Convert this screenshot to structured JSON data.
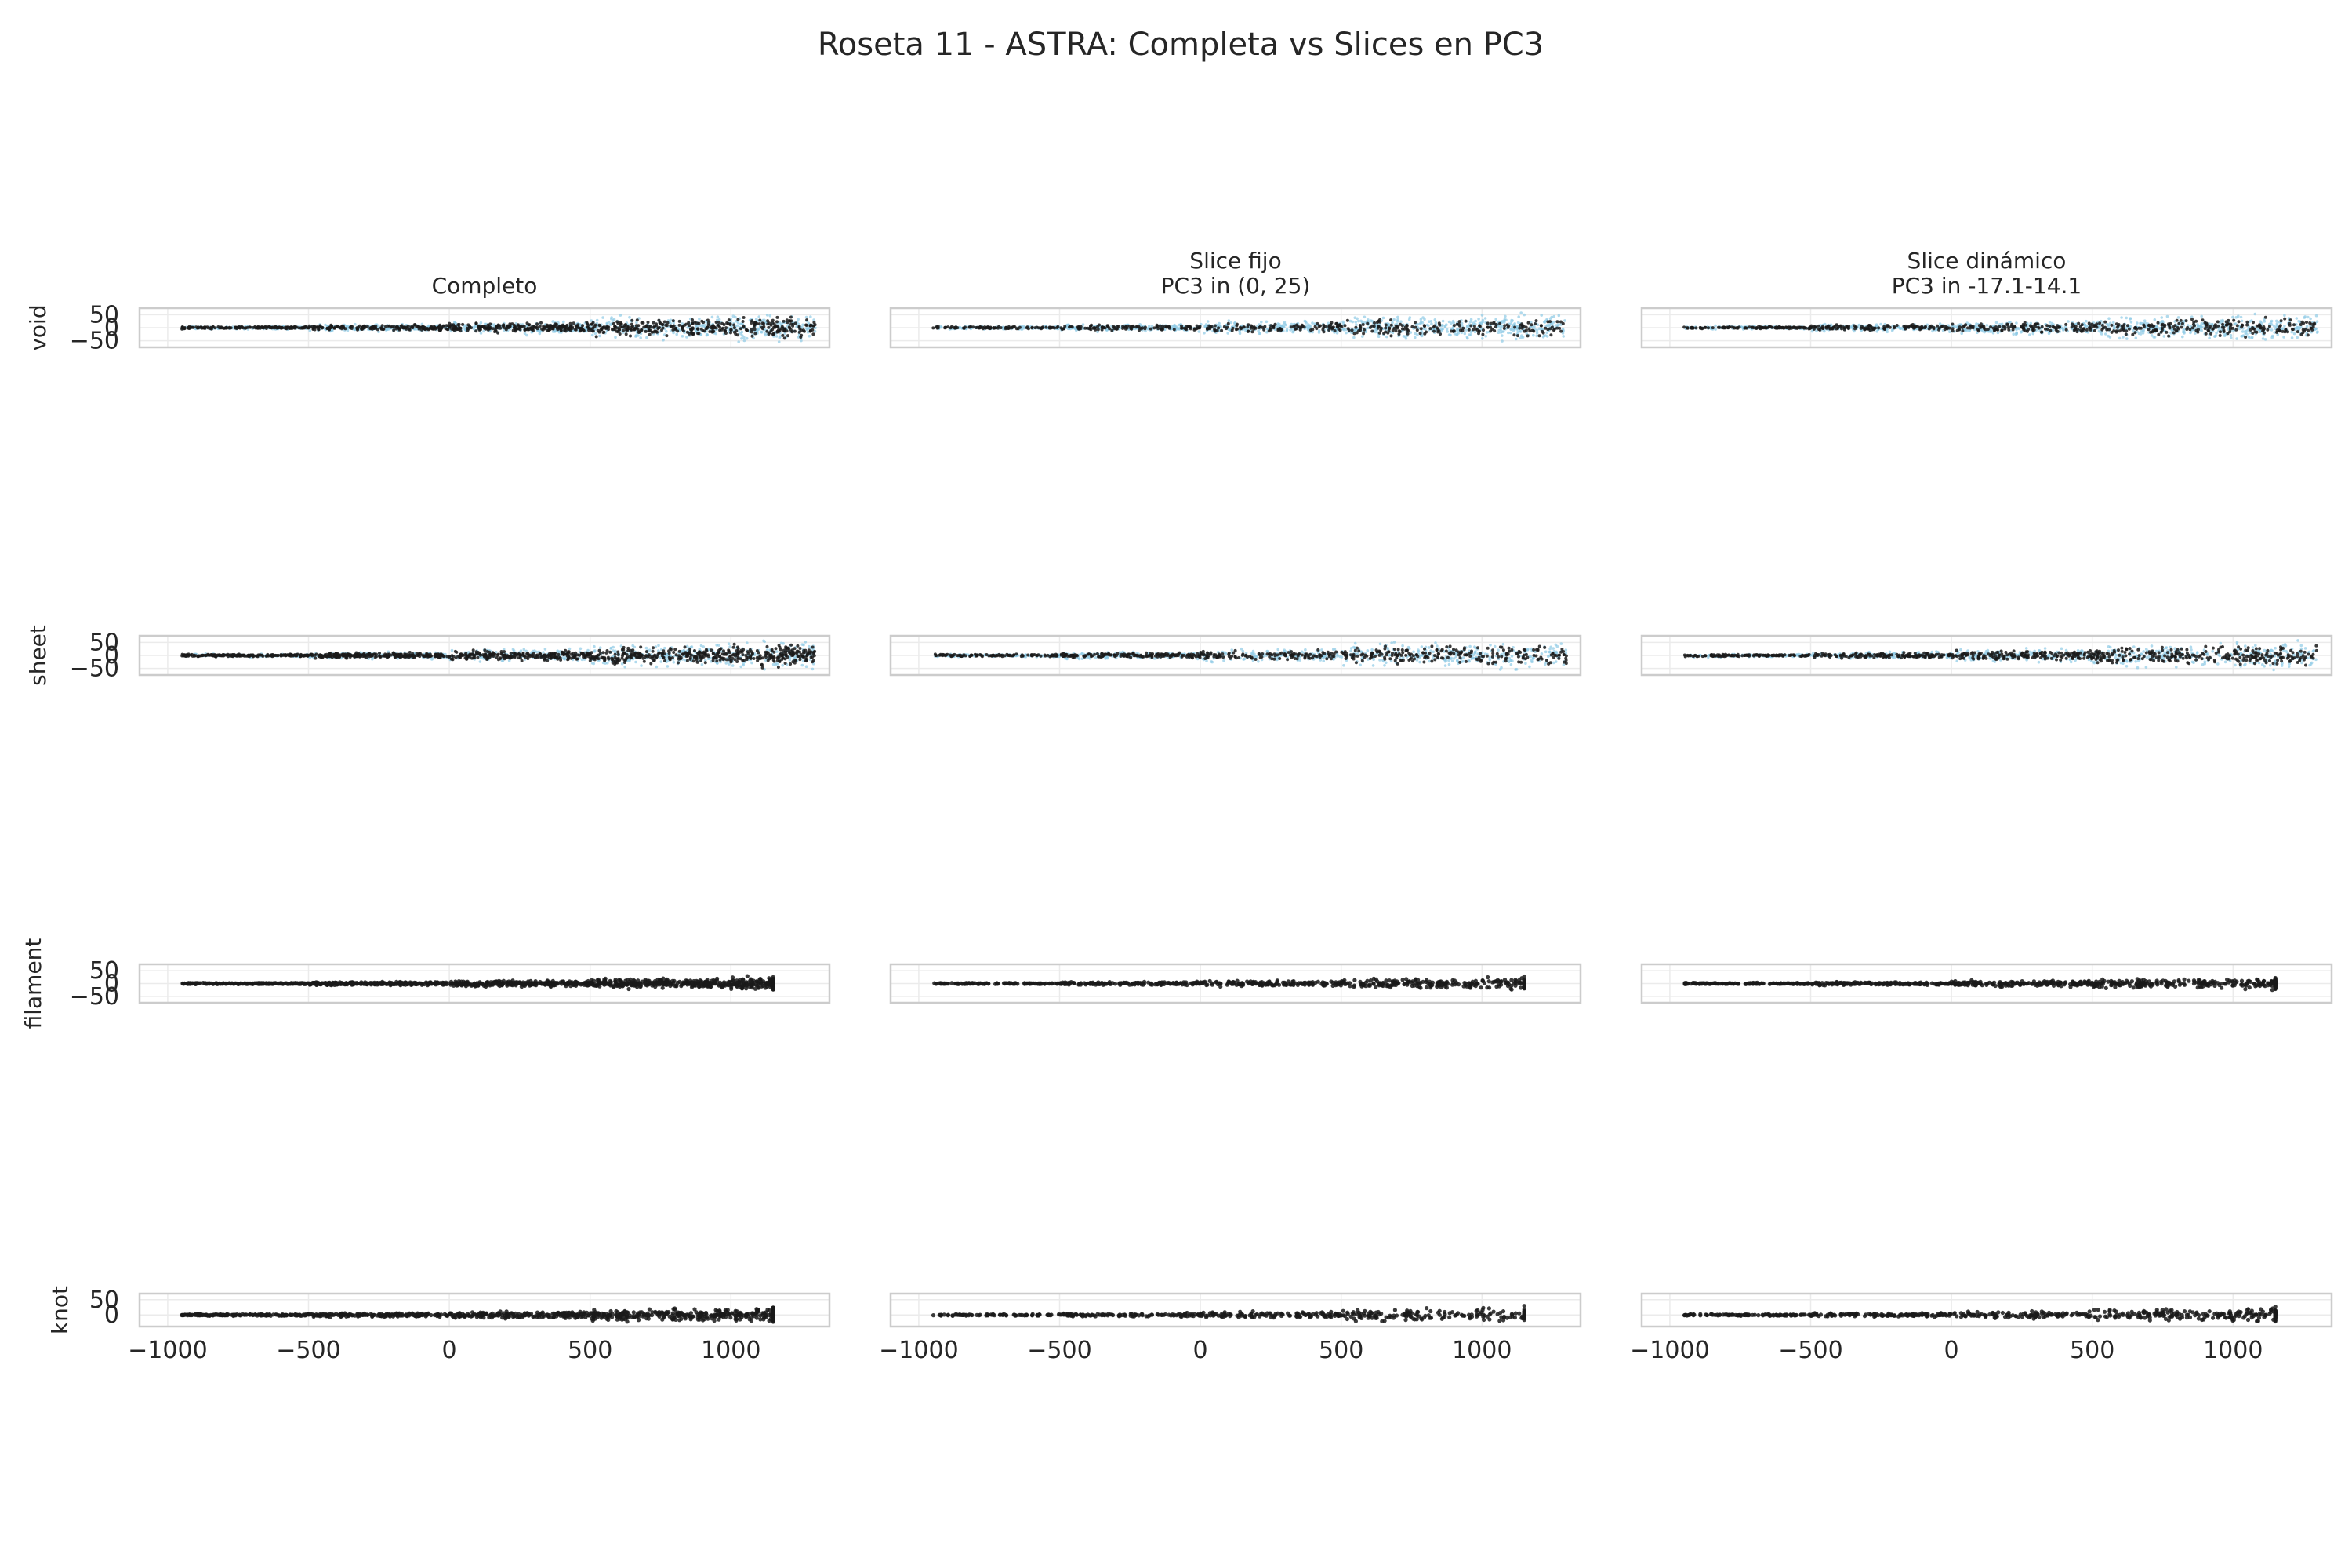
{
  "title": "Roseta 11 - ASTRA: Completa vs Slices en PC3",
  "chart_data": {
    "type": "scatter",
    "title": "Roseta 11 - ASTRA: Completa vs Slices en PC3",
    "grid": true,
    "colors": {
      "background_points": "#8ecae6",
      "slice_points": "#1a1a1a",
      "axes_border": "#cccccc",
      "grid": "#ebebeb"
    },
    "columns": [
      {
        "title_lines": [
          "Completo"
        ]
      },
      {
        "title_lines": [
          "Slice fijo",
          "PC3 in (0, 25)"
        ]
      },
      {
        "title_lines": [
          "Slice dinámico",
          "PC3 in -17.1-14.1"
        ]
      }
    ],
    "rows": [
      {
        "label": "void",
        "yticks": [
          "50",
          "0",
          "−50"
        ],
        "ylim": [
          -75,
          75
        ]
      },
      {
        "label": "sheet",
        "yticks": [
          "50",
          "0",
          "−50"
        ],
        "ylim": [
          -75,
          75
        ]
      },
      {
        "label": "filament",
        "yticks": [
          "50",
          "0",
          "−50"
        ],
        "ylim": [
          -75,
          75
        ]
      },
      {
        "label": "knot",
        "yticks": [
          "50",
          "0"
        ],
        "ylim": [
          -38,
          70
        ]
      }
    ],
    "xlim": [
      -1100,
      1350
    ],
    "xticks": [
      -1000,
      -500,
      0,
      500,
      1000
    ],
    "xtick_labels": [
      "−1000",
      "−500",
      "0",
      "500",
      "1000"
    ],
    "distribution": {
      "series": [
        {
          "name": "",
          "role": "all points",
          "color": "#8ecae6"
        },
        {
          "name": "",
          "role": "points in PC3 slice",
          "color": "#1a1a1a"
        }
      ],
      "x_segments": [
        {
          "x": [
            -950,
            -500
          ],
          "y_halfwidth": 8
        },
        {
          "x": [
            -500,
            0
          ],
          "y_halfwidth": 18
        },
        {
          "x": [
            0,
            500
          ],
          "y_halfwidth": 32
        },
        {
          "x": [
            500,
            1000
          ],
          "y_halfwidth": 55
        },
        {
          "x": [
            1000,
            1300
          ],
          "y_halfwidth": 70
        }
      ]
    }
  }
}
